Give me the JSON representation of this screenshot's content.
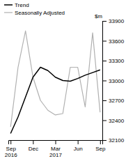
{
  "chart_data": {
    "type": "line",
    "title": "$m",
    "categories": [
      "Sep\n2016",
      null,
      null,
      "Dec",
      null,
      null,
      "Mar\n2017",
      null,
      null,
      "Jun",
      null,
      null,
      "Sep"
    ],
    "series": [
      {
        "name": "Seasonally Adjusted",
        "color": "#b0b0b0",
        "values": [
          32300,
          33200,
          33750,
          33050,
          32700,
          32550,
          32480,
          32500,
          33200,
          33200,
          32600,
          33720,
          32520
        ]
      },
      {
        "name": "Trend",
        "color": "#000000",
        "values": [
          32200,
          32450,
          32750,
          33050,
          33200,
          33150,
          33050,
          33000,
          32990,
          33030,
          33080,
          33120,
          33160
        ]
      }
    ],
    "ylim": [
      32100,
      33900
    ],
    "yticks": [
      32100,
      32400,
      32700,
      33000,
      33300,
      33600,
      33900
    ],
    "legend": "upper left",
    "grid": false
  }
}
